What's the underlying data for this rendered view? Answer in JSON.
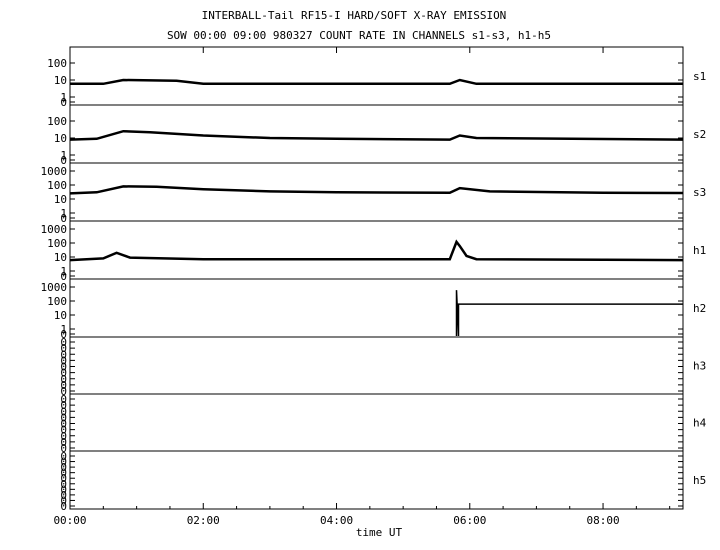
{
  "chart_data": {
    "type": "line",
    "title": "INTERBALL-Tail RF15-I HARD/SOFT X-RAY EMISSION",
    "subtitle": "SOW 00:00 09:00 980327  COUNT RATE IN CHANNELS s1-s3, h1-h5",
    "xlabel": "time UT",
    "x_tick_labels": [
      "00:00",
      "02:00",
      "04:00",
      "06:00",
      "08:00"
    ],
    "x_tick_hours": [
      0,
      2,
      4,
      6,
      8
    ],
    "xlim_hours": [
      0,
      9.2
    ],
    "log_scale": true,
    "grid": false,
    "panels": [
      {
        "name": "s1",
        "y_ticks": [
          "100",
          "10",
          "1",
          "0"
        ],
        "points": [
          [
            0,
            6
          ],
          [
            0.5,
            6
          ],
          [
            0.8,
            10
          ],
          [
            1.6,
            9
          ],
          [
            2.0,
            6
          ],
          [
            5.7,
            6
          ],
          [
            5.85,
            10
          ],
          [
            6.1,
            6
          ],
          [
            9.2,
            6
          ]
        ]
      },
      {
        "name": "s2",
        "y_ticks": [
          "100",
          "10",
          "1",
          "0"
        ],
        "points": [
          [
            0,
            8
          ],
          [
            0.4,
            9
          ],
          [
            0.8,
            25
          ],
          [
            1.2,
            22
          ],
          [
            2.0,
            14
          ],
          [
            3.0,
            10
          ],
          [
            4.0,
            9
          ],
          [
            5.7,
            8
          ],
          [
            5.85,
            14
          ],
          [
            6.1,
            10
          ],
          [
            9.2,
            8
          ]
        ]
      },
      {
        "name": "s3",
        "y_ticks": [
          "1000",
          "100",
          "10",
          "1",
          "0"
        ],
        "points": [
          [
            0,
            25
          ],
          [
            0.4,
            30
          ],
          [
            0.8,
            80
          ],
          [
            1.3,
            75
          ],
          [
            2.0,
            50
          ],
          [
            3.0,
            35
          ],
          [
            4.0,
            30
          ],
          [
            5.7,
            28
          ],
          [
            5.85,
            60
          ],
          [
            6.3,
            35
          ],
          [
            8.0,
            28
          ],
          [
            9.2,
            27
          ]
        ]
      },
      {
        "name": "h1",
        "y_ticks": [
          "1000",
          "100",
          "10",
          "1",
          "0"
        ],
        "points": [
          [
            0,
            6
          ],
          [
            0.5,
            8
          ],
          [
            0.7,
            20
          ],
          [
            0.9,
            9
          ],
          [
            2.0,
            7
          ],
          [
            5.7,
            7
          ],
          [
            5.8,
            120
          ],
          [
            5.85,
            60
          ],
          [
            5.95,
            12
          ],
          [
            6.1,
            7
          ],
          [
            9.2,
            6
          ]
        ]
      },
      {
        "name": "h2",
        "y_ticks": [
          "1000",
          "100",
          "10",
          "1",
          "0"
        ],
        "points": [
          [
            5.8,
            0
          ],
          [
            5.8,
            600
          ],
          [
            5.83,
            0
          ],
          [
            5.83,
            60
          ],
          [
            9.2,
            60
          ]
        ]
      },
      {
        "name": "h3",
        "y_ticks": [
          "0",
          "0",
          "0",
          "0",
          "0",
          "0",
          "0",
          "0",
          "0"
        ],
        "points": []
      },
      {
        "name": "h4",
        "y_ticks": [
          "0",
          "0",
          "0",
          "0",
          "0",
          "0",
          "0",
          "0",
          "0"
        ],
        "points": []
      },
      {
        "name": "h5",
        "y_ticks": [
          "0",
          "0",
          "0",
          "0",
          "0",
          "0",
          "0",
          "0",
          "0",
          "0"
        ],
        "points": []
      }
    ],
    "colors": {
      "line": "#000000",
      "background": "#ffffff"
    }
  }
}
